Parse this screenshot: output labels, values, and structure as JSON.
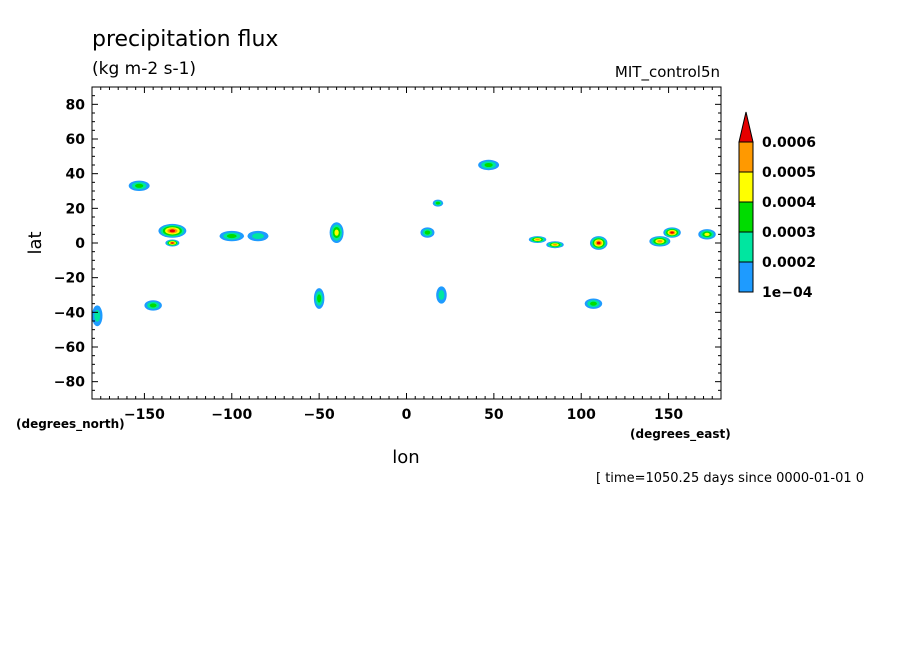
{
  "chart_data": {
    "type": "heatmap",
    "title": "precipitation flux",
    "units": "(kg m-2 s-1)",
    "dataset": "MIT_control5n",
    "xlabel": "lon",
    "ylabel": "lat",
    "x_units_label": "(degrees_east)",
    "y_units_label": "(degrees_north)",
    "xlim": [
      -180,
      180
    ],
    "ylim": [
      -90,
      90
    ],
    "xticks": [
      -150,
      -100,
      -50,
      0,
      50,
      100,
      150
    ],
    "yticks": [
      80,
      60,
      40,
      20,
      0,
      -20,
      -40,
      -60,
      -80
    ],
    "colorbar": {
      "levels": [
        "1e-04",
        "0.0002",
        "0.0003",
        "0.0004",
        "0.0005",
        "0.0006"
      ],
      "colors": [
        "#1e9bff",
        "#00e6a0",
        "#00dc00",
        "#ffff00",
        "#ff9900",
        "#e60000"
      ],
      "extend": "max"
    },
    "footer": "[ time=1050.25 days since 0000-01-01 0",
    "features": [
      {
        "lon": -153,
        "lat": 33,
        "rx": 6,
        "ry": 3,
        "level": 2
      },
      {
        "lon": -134,
        "lat": 7,
        "rx": 8,
        "ry": 4,
        "level": 5
      },
      {
        "lon": -134,
        "lat": 0,
        "rx": 4,
        "ry": 2,
        "level": 5
      },
      {
        "lon": -100,
        "lat": 4,
        "rx": 7,
        "ry": 3,
        "level": 2
      },
      {
        "lon": -85,
        "lat": 4,
        "rx": 6,
        "ry": 3,
        "level": 1
      },
      {
        "lon": -40,
        "lat": 6,
        "rx": 4,
        "ry": 6,
        "level": 3
      },
      {
        "lon": 12,
        "lat": 6,
        "rx": 4,
        "ry": 3,
        "level": 2
      },
      {
        "lon": 18,
        "lat": 23,
        "rx": 3,
        "ry": 2,
        "level": 2
      },
      {
        "lon": 47,
        "lat": 45,
        "rx": 6,
        "ry": 3,
        "level": 2
      },
      {
        "lon": 75,
        "lat": 2,
        "rx": 5,
        "ry": 2,
        "level": 4
      },
      {
        "lon": 85,
        "lat": -1,
        "rx": 5,
        "ry": 2,
        "level": 4
      },
      {
        "lon": 110,
        "lat": 0,
        "rx": 5,
        "ry": 4,
        "level": 5
      },
      {
        "lon": 145,
        "lat": 1,
        "rx": 6,
        "ry": 3,
        "level": 4
      },
      {
        "lon": 152,
        "lat": 6,
        "rx": 5,
        "ry": 3,
        "level": 5
      },
      {
        "lon": 172,
        "lat": 5,
        "rx": 5,
        "ry": 3,
        "level": 3
      },
      {
        "lon": -145,
        "lat": -36,
        "rx": 5,
        "ry": 3,
        "level": 2
      },
      {
        "lon": -50,
        "lat": -32,
        "rx": 3,
        "ry": 6,
        "level": 2
      },
      {
        "lon": 107,
        "lat": -35,
        "rx": 5,
        "ry": 3,
        "level": 2
      },
      {
        "lon": -177,
        "lat": -42,
        "rx": 3,
        "ry": 6,
        "level": 1
      },
      {
        "lon": 20,
        "lat": -30,
        "rx": 3,
        "ry": 5,
        "level": 1
      }
    ]
  }
}
